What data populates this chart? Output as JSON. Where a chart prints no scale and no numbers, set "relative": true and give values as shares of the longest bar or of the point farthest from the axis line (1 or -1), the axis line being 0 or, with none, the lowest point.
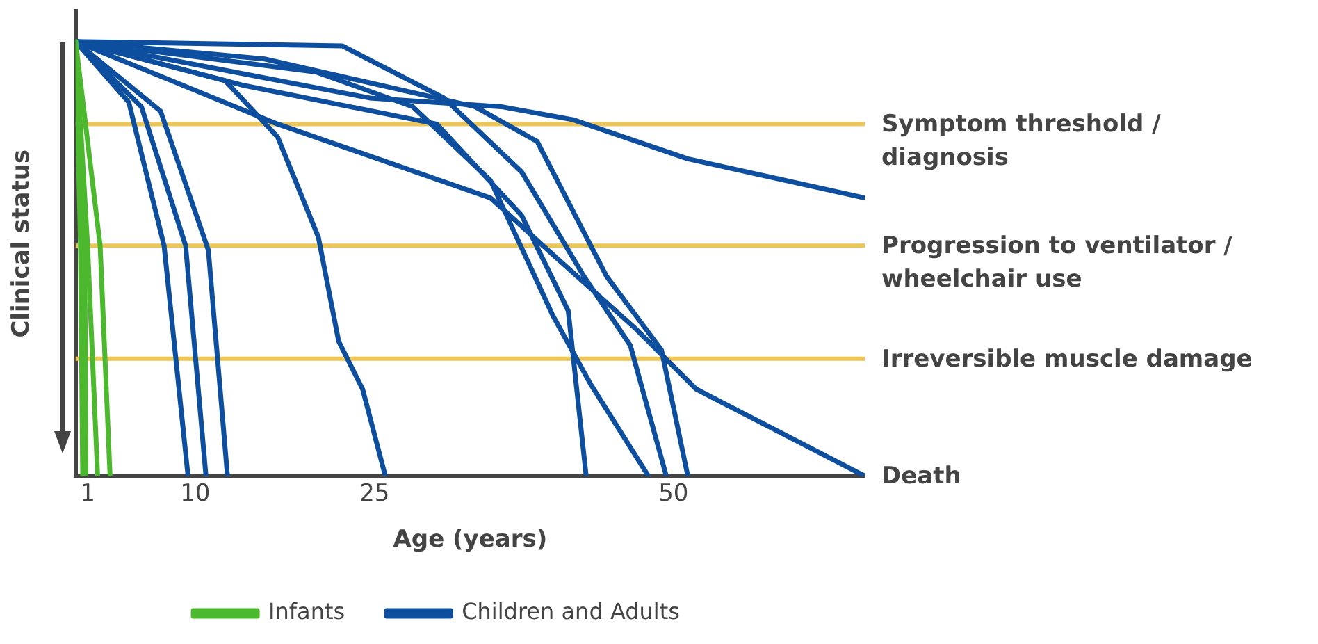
{
  "chart_data": {
    "type": "line",
    "relative": true,
    "ylabel": "Clinical status",
    "xlabel": "Age (years)",
    "xlim": [
      0,
      66
    ],
    "xticks": [
      1,
      10,
      25,
      50
    ],
    "legend": "bottom",
    "grid": false,
    "marker": "none",
    "line_style": "solid",
    "series": [
      {
        "name": "Infants",
        "color": "#4cb82e",
        "x": [
          0,
          0.41,
          0.59
        ],
        "values": [
          1,
          0.53,
          0
        ]
      },
      {
        "color": "#4cb82e",
        "x": [
          0,
          0.76,
          0.86
        ],
        "values": [
          1,
          0.53,
          0
        ]
      },
      {
        "color": "#4cb82e",
        "x": [
          0,
          1.0,
          1.84
        ],
        "values": [
          1,
          0.53,
          0
        ]
      },
      {
        "color": "#4cb82e",
        "x": [
          0,
          2.05,
          2.88
        ],
        "values": [
          1,
          0.53,
          0
        ]
      },
      {
        "name": "Children and Adults",
        "color": "#0d4f9e",
        "x": [
          0,
          4.45,
          7.4,
          9.4
        ],
        "values": [
          1,
          0.86,
          0.53,
          0
        ]
      },
      {
        "color": "#0d4f9e",
        "x": [
          0,
          5.5,
          9.2,
          10.9
        ],
        "values": [
          1,
          0.85,
          0.53,
          0
        ]
      },
      {
        "color": "#0d4f9e",
        "x": [
          0,
          7.1,
          11.1,
          12.7
        ],
        "values": [
          1,
          0.84,
          0.52,
          0
        ]
      },
      {
        "color": "#0d4f9e",
        "x": [
          0,
          12.5,
          16.9,
          20.3,
          22.0,
          24.0,
          25.9
        ],
        "values": [
          1,
          0.91,
          0.78,
          0.55,
          0.31,
          0.2,
          0
        ]
      },
      {
        "color": "#0d4f9e",
        "x": [
          0,
          24.6,
          35.6,
          41.6,
          51.2,
          66
        ],
        "values": [
          1,
          0.87,
          0.85,
          0.82,
          0.73,
          0.64
        ]
      },
      {
        "color": "#0d4f9e",
        "x": [
          0,
          16.9,
          34.7,
          39.9,
          46.8,
          51.9,
          66
        ],
        "values": [
          1,
          0.81,
          0.64,
          0.51,
          0.34,
          0.2,
          0
        ]
      },
      {
        "color": "#0d4f9e",
        "x": [
          0,
          22.3,
          30.8,
          37.3,
          42.5,
          46.4,
          49.4
        ],
        "values": [
          1,
          0.99,
          0.87,
          0.7,
          0.46,
          0.3,
          0
        ]
      },
      {
        "color": "#0d4f9e",
        "x": [
          0,
          13.9,
          30.2,
          37.3,
          41.2,
          42.7
        ],
        "values": [
          1,
          0.9,
          0.81,
          0.6,
          0.38,
          0
        ]
      },
      {
        "color": "#0d4f9e",
        "x": [
          0,
          20.1,
          28.2,
          34.7,
          39.9,
          43.1,
          47.9
        ],
        "values": [
          1,
          0.93,
          0.85,
          0.68,
          0.37,
          0.21,
          0
        ]
      },
      {
        "color": "#0d4f9e",
        "x": [
          0,
          15.8,
          33.4,
          38.6,
          44.4,
          49.0,
          51.2
        ],
        "values": [
          1,
          0.96,
          0.85,
          0.77,
          0.46,
          0.29,
          0
        ]
      }
    ],
    "ref_lines": [
      {
        "axis": "y",
        "value": 0.81,
        "label": "Symptom threshold / diagnosis",
        "color": "#edc65a"
      },
      {
        "axis": "y",
        "value": 0.53,
        "label": "Progression to ventilator / wheelchair use",
        "color": "#edc65a"
      },
      {
        "axis": "y",
        "value": 0.27,
        "label": "Irreversible muscle damage",
        "color": "#edc65a"
      }
    ],
    "annotations": [
      {
        "text": "Death",
        "x": 66,
        "y": 0
      }
    ]
  }
}
